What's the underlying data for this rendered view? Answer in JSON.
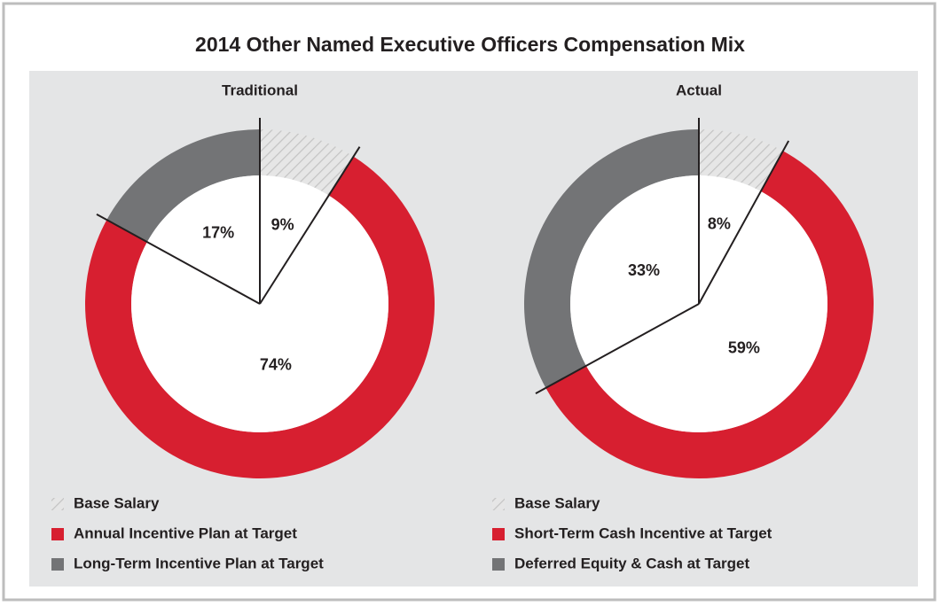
{
  "title": "2014 Other Named Executive Officers Compensation Mix",
  "chart_data": [
    {
      "type": "pie",
      "title": "Traditional",
      "categories": [
        "Base Salary",
        "Annual Incentive Plan at Target",
        "Long-Term Incentive Plan at Target"
      ],
      "values": [
        9,
        74,
        17
      ],
      "value_labels": [
        "9%",
        "74%",
        "17%"
      ],
      "colors": [
        "#d9d9d9",
        "#d71f30",
        "#737476"
      ],
      "hatched": [
        true,
        false,
        false
      ]
    },
    {
      "type": "pie",
      "title": "Actual",
      "categories": [
        "Base Salary",
        "Short-Term Cash Incentive at Target",
        "Deferred Equity & Cash at Target"
      ],
      "values": [
        8,
        59,
        33
      ],
      "value_labels": [
        "8%",
        "59%",
        "33%"
      ],
      "colors": [
        "#d9d9d9",
        "#d71f30",
        "#737476"
      ],
      "hatched": [
        true,
        false,
        false
      ]
    }
  ]
}
